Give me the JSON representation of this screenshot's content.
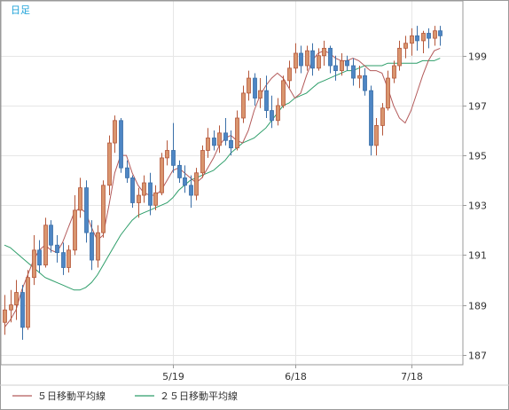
{
  "chart_data": {
    "type": "candlestick",
    "period_label": "日足",
    "ylim": [
      186.6,
      201.2
    ],
    "yticks": [
      187,
      189,
      191,
      193,
      195,
      197,
      199
    ],
    "x_labels": [
      {
        "index": 29,
        "label": "5/19"
      },
      {
        "index": 50,
        "label": "6/18"
      },
      {
        "index": 70,
        "label": "7/18"
      }
    ],
    "grid": true,
    "legend_position": "bottom-left",
    "colors": {
      "up": "#d9956e",
      "up_edge": "#b5573a",
      "down": "#4e86c4",
      "down_edge": "#3a6fa8",
      "ma5": "#b35a5a",
      "ma25": "#2e9e6a",
      "grid": "#e6e6e6",
      "frame": "#9a9a9a",
      "period_text": "#1fa3d9"
    },
    "series": [
      {
        "name": "５日移動平均線",
        "color": "#b35a5a",
        "values": [
          188.1,
          188.4,
          188.8,
          189.6,
          190.2,
          190.8,
          191.2,
          191.4,
          191.2,
          191.1,
          191.5,
          192.1,
          192.7,
          192.9,
          192.7,
          192.1,
          191.6,
          191.8,
          193.0,
          194.3,
          195.0,
          195.0,
          194.3,
          193.8,
          193.5,
          193.4,
          193.4,
          193.6,
          194.0,
          194.4,
          194.5,
          194.3,
          194.1,
          193.9,
          194.1,
          194.5,
          194.9,
          195.4,
          195.7,
          195.8,
          195.6,
          195.5,
          196.0,
          196.8,
          197.4,
          197.8,
          198.1,
          198.3,
          198.1,
          197.7,
          197.3,
          197.5,
          198.2,
          198.8,
          199.1,
          199.2,
          199.1,
          198.9,
          198.8,
          198.8,
          198.9,
          198.8,
          198.6,
          198.4,
          198.4,
          198.3,
          197.7,
          197.0,
          196.5,
          196.3,
          196.8,
          197.5,
          198.2,
          198.8,
          199.2,
          199.3
        ]
      },
      {
        "name": "２５日移動平均線",
        "color": "#2e9e6a",
        "values": [
          191.4,
          191.3,
          191.1,
          190.9,
          190.7,
          190.5,
          190.3,
          190.1,
          190.0,
          189.9,
          189.8,
          189.7,
          189.6,
          189.6,
          189.7,
          189.9,
          190.2,
          190.6,
          191.0,
          191.4,
          191.8,
          192.1,
          192.4,
          192.6,
          192.7,
          192.8,
          192.9,
          193.0,
          193.1,
          193.3,
          193.6,
          193.8,
          194.0,
          194.1,
          194.2,
          194.3,
          194.4,
          194.6,
          194.8,
          195.1,
          195.3,
          195.5,
          195.6,
          195.7,
          195.9,
          196.1,
          196.4,
          196.7,
          197.0,
          197.1,
          197.3,
          197.4,
          197.5,
          197.7,
          197.9,
          198.0,
          198.1,
          198.2,
          198.3,
          198.4,
          198.4,
          198.5,
          198.6,
          198.6,
          198.6,
          198.6,
          198.7,
          198.7,
          198.7,
          198.7,
          198.7,
          198.7,
          198.8,
          198.8,
          198.8,
          198.9
        ]
      }
    ],
    "candles": [
      [
        188.3,
        189.4,
        187.8,
        188.8
      ],
      [
        188.8,
        189.6,
        188.3,
        189.0
      ],
      [
        189.0,
        190.0,
        188.4,
        189.5
      ],
      [
        189.5,
        189.8,
        187.6,
        188.1
      ],
      [
        188.1,
        190.4,
        188.0,
        190.1
      ],
      [
        190.1,
        191.8,
        189.8,
        191.2
      ],
      [
        191.2,
        191.6,
        190.3,
        190.6
      ],
      [
        190.6,
        192.5,
        190.5,
        192.2
      ],
      [
        192.2,
        192.4,
        191.1,
        191.4
      ],
      [
        191.4,
        191.8,
        190.7,
        191.1
      ],
      [
        191.1,
        191.5,
        190.2,
        190.5
      ],
      [
        190.5,
        191.4,
        190.3,
        191.2
      ],
      [
        191.2,
        193.4,
        191.0,
        192.8
      ],
      [
        192.8,
        194.1,
        192.5,
        193.7
      ],
      [
        193.7,
        194.0,
        191.5,
        191.9
      ],
      [
        191.9,
        192.4,
        190.4,
        190.8
      ],
      [
        190.8,
        192.2,
        190.5,
        191.9
      ],
      [
        191.9,
        194.0,
        191.7,
        193.8
      ],
      [
        193.8,
        195.8,
        193.4,
        195.5
      ],
      [
        195.5,
        196.6,
        195.1,
        196.4
      ],
      [
        196.4,
        196.5,
        194.3,
        194.5
      ],
      [
        194.5,
        194.8,
        193.9,
        194.1
      ],
      [
        194.1,
        194.2,
        192.9,
        193.1
      ],
      [
        193.1,
        193.7,
        192.5,
        193.4
      ],
      [
        193.4,
        194.2,
        193.1,
        193.9
      ],
      [
        193.9,
        194.3,
        192.6,
        193.0
      ],
      [
        193.0,
        193.8,
        192.8,
        193.5
      ],
      [
        193.5,
        195.1,
        193.4,
        194.9
      ],
      [
        194.9,
        195.6,
        194.6,
        195.2
      ],
      [
        195.2,
        196.3,
        194.3,
        194.6
      ],
      [
        194.6,
        194.8,
        193.9,
        194.1
      ],
      [
        194.1,
        194.6,
        193.5,
        193.8
      ],
      [
        193.8,
        194.2,
        192.9,
        193.4
      ],
      [
        193.4,
        194.5,
        193.2,
        194.3
      ],
      [
        194.3,
        195.4,
        194.1,
        195.2
      ],
      [
        195.2,
        196.1,
        194.9,
        195.7
      ],
      [
        195.7,
        196.0,
        195.2,
        195.4
      ],
      [
        195.4,
        196.2,
        195.1,
        195.9
      ],
      [
        195.9,
        196.5,
        195.4,
        195.6
      ],
      [
        195.6,
        196.0,
        195.0,
        195.3
      ],
      [
        195.3,
        196.8,
        195.2,
        196.5
      ],
      [
        196.5,
        197.8,
        196.3,
        197.5
      ],
      [
        197.5,
        198.4,
        197.2,
        198.1
      ],
      [
        198.1,
        198.3,
        197.0,
        197.3
      ],
      [
        197.3,
        198.1,
        196.9,
        197.6
      ],
      [
        197.6,
        198.2,
        196.5,
        196.8
      ],
      [
        196.8,
        197.4,
        196.1,
        196.4
      ],
      [
        196.4,
        197.3,
        196.2,
        197.0
      ],
      [
        197.0,
        198.2,
        196.9,
        198.0
      ],
      [
        198.0,
        198.8,
        197.7,
        198.5
      ],
      [
        198.5,
        199.5,
        198.3,
        199.1
      ],
      [
        199.1,
        199.4,
        198.3,
        198.6
      ],
      [
        198.6,
        199.4,
        198.4,
        199.2
      ],
      [
        199.2,
        199.5,
        198.2,
        198.5
      ],
      [
        198.5,
        199.3,
        198.4,
        199.0
      ],
      [
        199.0,
        199.6,
        198.6,
        199.3
      ],
      [
        199.3,
        199.4,
        198.3,
        198.6
      ],
      [
        198.6,
        199.0,
        198.0,
        198.4
      ],
      [
        198.4,
        199.1,
        198.2,
        198.8
      ],
      [
        198.8,
        199.0,
        198.4,
        198.6
      ],
      [
        198.6,
        198.9,
        197.8,
        198.1
      ],
      [
        198.1,
        198.6,
        197.7,
        198.2
      ],
      [
        198.2,
        198.5,
        197.4,
        197.6
      ],
      [
        197.6,
        197.8,
        195.0,
        195.4
      ],
      [
        195.4,
        196.5,
        195.0,
        196.2
      ],
      [
        196.2,
        197.1,
        195.8,
        196.9
      ],
      [
        196.9,
        198.4,
        196.8,
        198.1
      ],
      [
        198.1,
        198.8,
        197.9,
        198.6
      ],
      [
        198.6,
        199.6,
        198.4,
        199.3
      ],
      [
        199.3,
        199.8,
        198.9,
        199.5
      ],
      [
        199.5,
        200.1,
        199.0,
        199.8
      ],
      [
        199.8,
        200.2,
        199.2,
        199.6
      ],
      [
        199.6,
        200.0,
        199.1,
        199.9
      ],
      [
        199.9,
        200.1,
        199.3,
        199.7
      ],
      [
        199.7,
        200.2,
        199.4,
        200.0
      ],
      [
        200.0,
        200.2,
        199.4,
        199.8
      ]
    ]
  }
}
